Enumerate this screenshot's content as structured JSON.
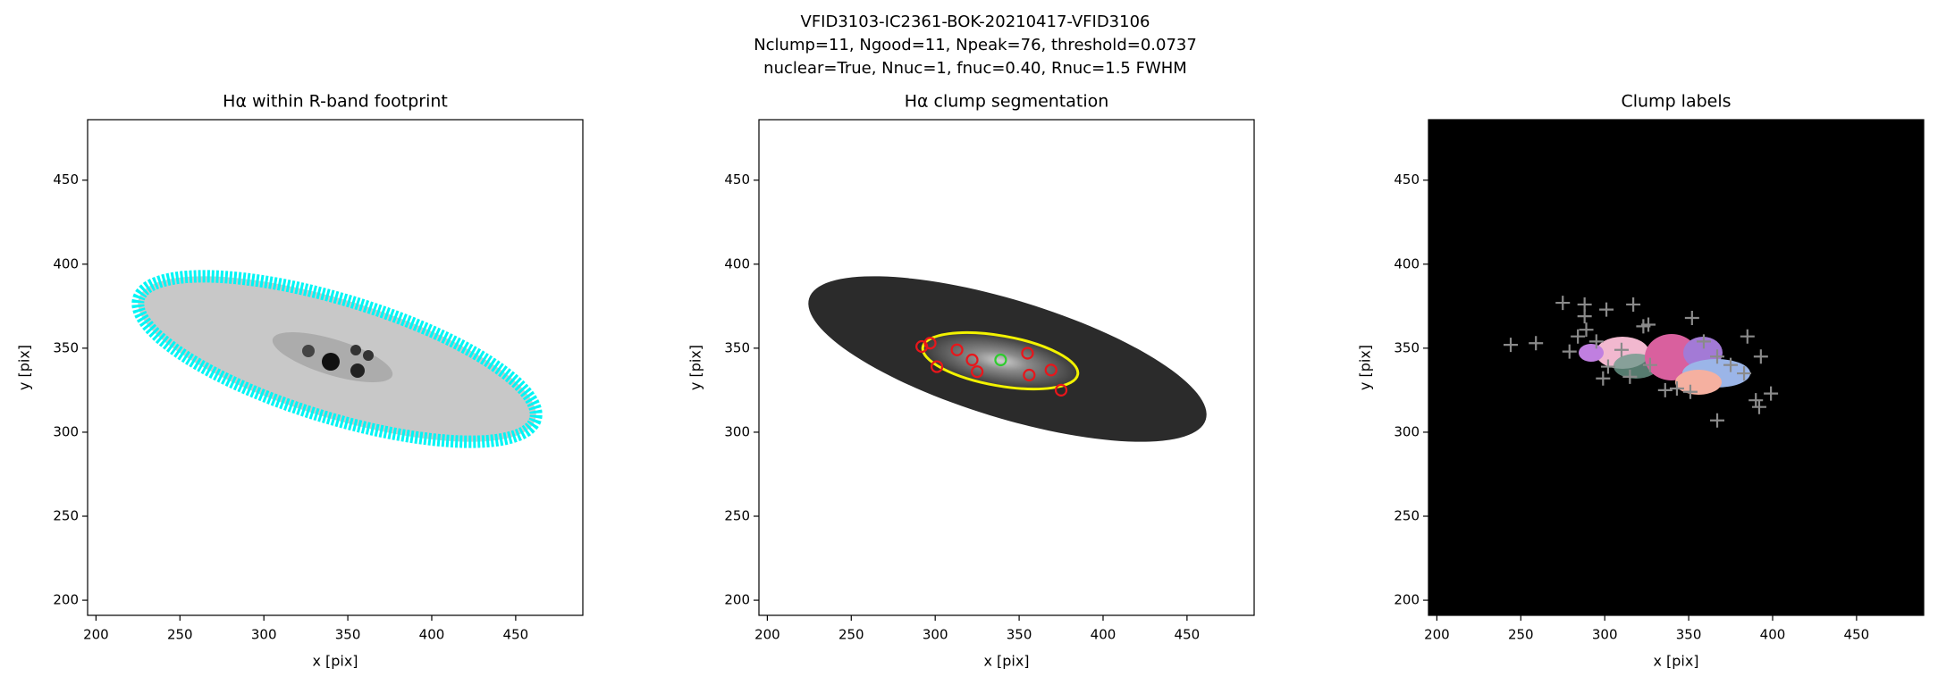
{
  "suptitle": [
    "VFID3103-IC2361-BOK-20210417-VFID3106",
    "Nclump=11, Ngood=11, Npeak=76, threshold=0.0737",
    "nuclear=True, Nnuc=1, fnuc=0.40, Rnuc=1.5 FWHM"
  ],
  "chart_data": [
    {
      "type": "image",
      "title": "Hα within R-band footprint",
      "xlabel": "x [pix]",
      "ylabel": "y [pix]",
      "xlim": [
        195,
        490
      ],
      "ylim": [
        191,
        486
      ],
      "xticks": [
        200,
        250,
        300,
        350,
        400,
        450
      ],
      "yticks": [
        200,
        250,
        300,
        350,
        400,
        450
      ]
    },
    {
      "type": "scatter",
      "title": "Hα clump segmentation",
      "xlabel": "x [pix]",
      "ylabel": "y [pix]",
      "xlim": [
        195,
        490
      ],
      "ylim": [
        191,
        486
      ],
      "xticks": [
        200,
        250,
        300,
        350,
        400,
        450
      ],
      "yticks": [
        200,
        250,
        300,
        350,
        400,
        450
      ],
      "marker": "circle",
      "series": [
        {
          "color": "#e8161b",
          "x": [
            292,
            297,
            301,
            313,
            322,
            325,
            355,
            356,
            369,
            375
          ],
          "y": [
            351,
            353,
            339,
            349,
            343,
            336,
            347,
            334,
            337,
            325
          ]
        },
        {
          "color": "#2ecc2e",
          "x": [
            339
          ],
          "y": [
            343
          ]
        }
      ]
    },
    {
      "type": "scatter",
      "title": "Clump labels",
      "xlabel": "x [pix]",
      "ylabel": "y [pix]",
      "xlim": [
        195,
        490
      ],
      "ylim": [
        191,
        486
      ],
      "xticks": [
        200,
        250,
        300,
        350,
        400,
        450
      ],
      "yticks": [
        200,
        250,
        300,
        350,
        400,
        450
      ],
      "marker": "plus",
      "series": [
        {
          "color": "#8a8a8a",
          "x": [
            244,
            259,
            275,
            288,
            288,
            301,
            317,
            279,
            284,
            289,
            295,
            302,
            310,
            323,
            326,
            352,
            359,
            385,
            367,
            375,
            383,
            393,
            399,
            367,
            351,
            343,
            336,
            327,
            299,
            315,
            392,
            390
          ],
          "y": [
            352,
            353,
            377,
            376,
            369,
            373,
            376,
            348,
            357,
            361,
            354,
            339,
            349,
            363,
            364,
            368,
            354,
            357,
            345,
            340,
            335,
            345,
            323,
            307,
            324,
            326,
            325,
            340,
            332,
            333,
            315,
            319
          ]
        }
      ]
    }
  ]
}
